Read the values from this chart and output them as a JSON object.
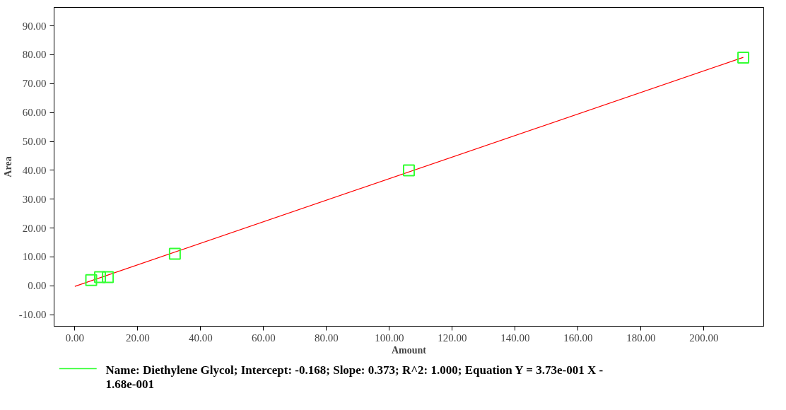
{
  "chart_data": {
    "type": "scatter",
    "xlabel": "Amount",
    "ylabel": "Area",
    "xlim": [
      -6.6,
      219
    ],
    "ylim": [
      -14,
      96.4
    ],
    "xticks": [
      {
        "value": 0,
        "label": "0.00"
      },
      {
        "value": 20,
        "label": "20.00"
      },
      {
        "value": 40,
        "label": "40.00"
      },
      {
        "value": 60,
        "label": "60.00"
      },
      {
        "value": 80,
        "label": "80.00"
      },
      {
        "value": 100,
        "label": "100.00"
      },
      {
        "value": 120,
        "label": "120.00"
      },
      {
        "value": 140,
        "label": "140.00"
      },
      {
        "value": 160,
        "label": "160.00"
      },
      {
        "value": 180,
        "label": "180.00"
      },
      {
        "value": 200,
        "label": "200.00"
      }
    ],
    "yticks": [
      {
        "value": -10,
        "label": "-10.00"
      },
      {
        "value": 0,
        "label": "0.00"
      },
      {
        "value": 10,
        "label": "10.00"
      },
      {
        "value": 20,
        "label": "20.00"
      },
      {
        "value": 30,
        "label": "30.00"
      },
      {
        "value": 40,
        "label": "40.00"
      },
      {
        "value": 50,
        "label": "50.00"
      },
      {
        "value": 60,
        "label": "60.00"
      },
      {
        "value": 70,
        "label": "70.00"
      },
      {
        "value": 80,
        "label": "80.00"
      },
      {
        "value": 90,
        "label": "90.00"
      }
    ],
    "grid": false,
    "legend": "bottom",
    "series": [
      {
        "name": "Name: Diethylene Glycol;   Intercept: -0.168;   Slope: 0.373;   R^2: 1.000; Equation Y = 3.73e-001 X - 1.68e-001",
        "color": "#33ff33",
        "marker": "square",
        "x": [
          5.2,
          8.0,
          10.5,
          31.8,
          106.2,
          212.5
        ],
        "values": [
          2.0,
          3.0,
          3.0,
          11.1,
          40.0,
          79.0
        ]
      },
      {
        "type": "line",
        "color": "#ff0000",
        "x": [
          0,
          212.5
        ],
        "values": [
          -0.2,
          79.1
        ]
      }
    ]
  }
}
